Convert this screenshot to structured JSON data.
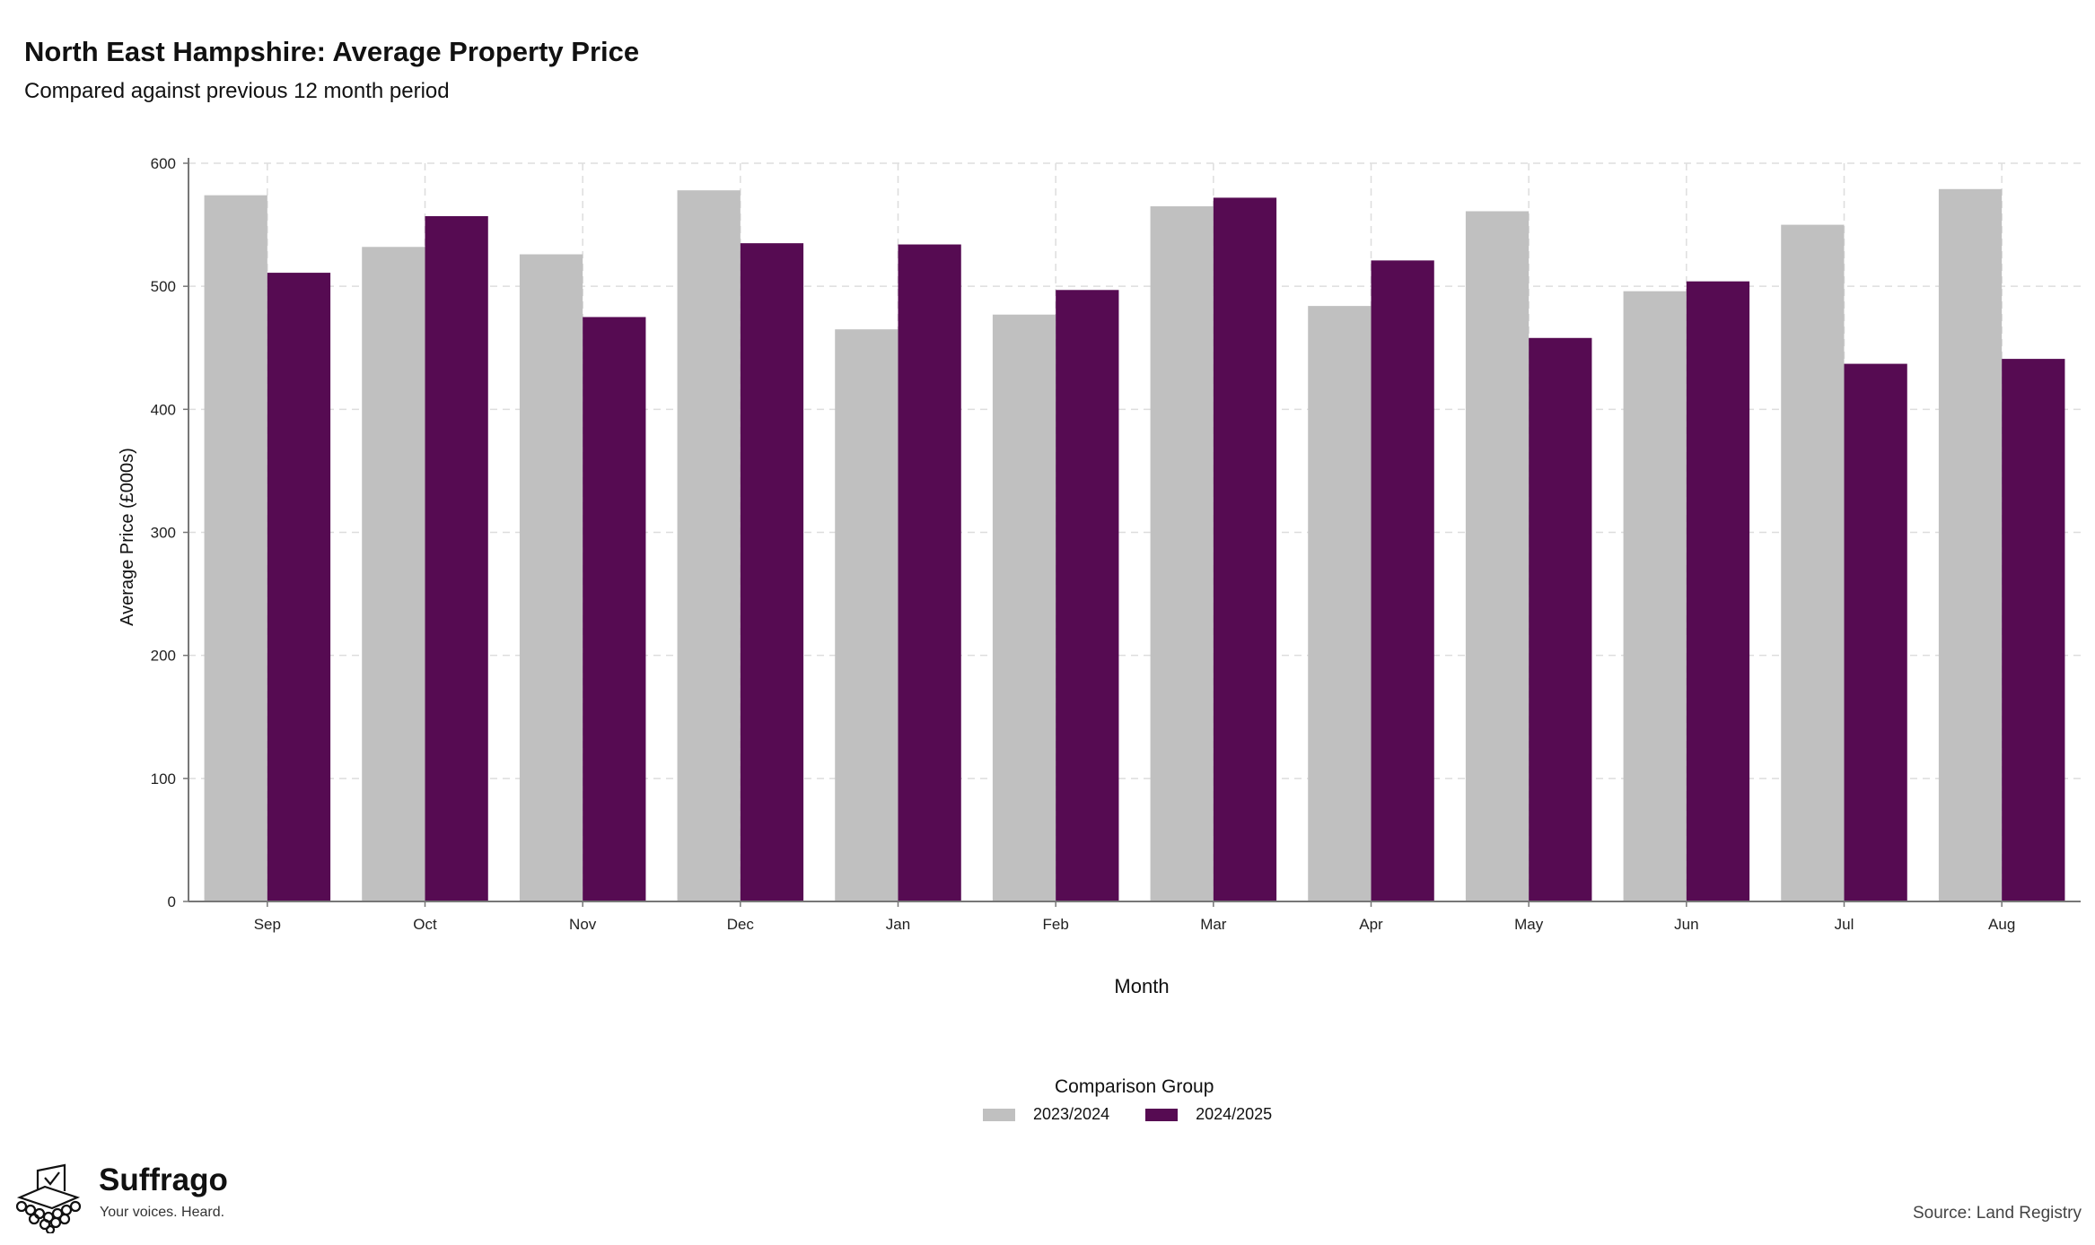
{
  "title": "North East Hampshire: Average Property Price",
  "subtitle": "Compared against previous 12 month period",
  "source": "Source: Land Registry",
  "brand": {
    "name": "Suffrago",
    "tagline": "Your voices. Heard."
  },
  "colors": {
    "series_a": "#c0c0c0",
    "series_b": "#560b52",
    "grid": "#dddddd",
    "axis": "#777777"
  },
  "chart_data": {
    "type": "bar",
    "xlabel": "Month",
    "ylabel": "Average Price (£000s)",
    "ylim": [
      0,
      600
    ],
    "yticks": [
      0,
      100,
      200,
      300,
      400,
      500,
      600
    ],
    "grid": true,
    "legend": {
      "title": "Comparison Group",
      "placement": "bottom-center"
    },
    "categories": [
      "Sep",
      "Oct",
      "Nov",
      "Dec",
      "Jan",
      "Feb",
      "Mar",
      "Apr",
      "May",
      "Jun",
      "Jul",
      "Aug"
    ],
    "series": [
      {
        "name": "2023/2024",
        "values": [
          574,
          532,
          526,
          578,
          465,
          477,
          565,
          484,
          561,
          496,
          550,
          579
        ]
      },
      {
        "name": "2024/2025",
        "values": [
          511,
          557,
          475,
          535,
          534,
          497,
          572,
          521,
          458,
          504,
          437,
          441
        ]
      }
    ]
  }
}
